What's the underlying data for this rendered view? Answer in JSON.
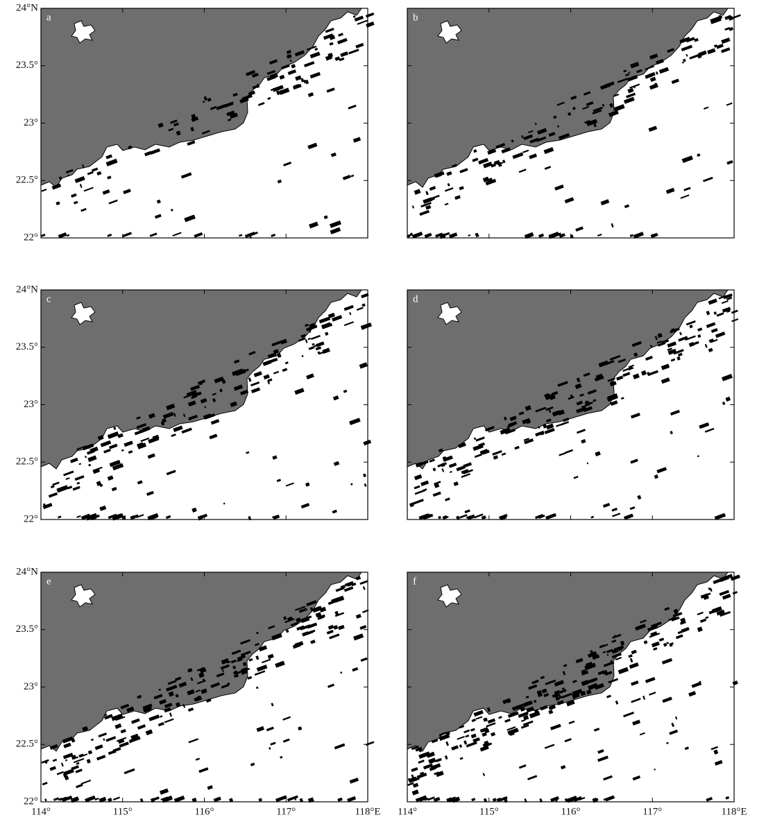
{
  "panels": [
    {
      "label": "a"
    },
    {
      "label": "b"
    },
    {
      "label": "c"
    },
    {
      "label": "d"
    },
    {
      "label": "e"
    },
    {
      "label": "f"
    }
  ],
  "y_axis": {
    "ticks": [
      "24°N",
      "23.5°",
      "23°",
      "22.5°",
      "22°"
    ]
  },
  "x_axis": {
    "ticks": [
      "114°",
      "115°",
      "116°",
      "117°",
      "118°E"
    ]
  }
}
